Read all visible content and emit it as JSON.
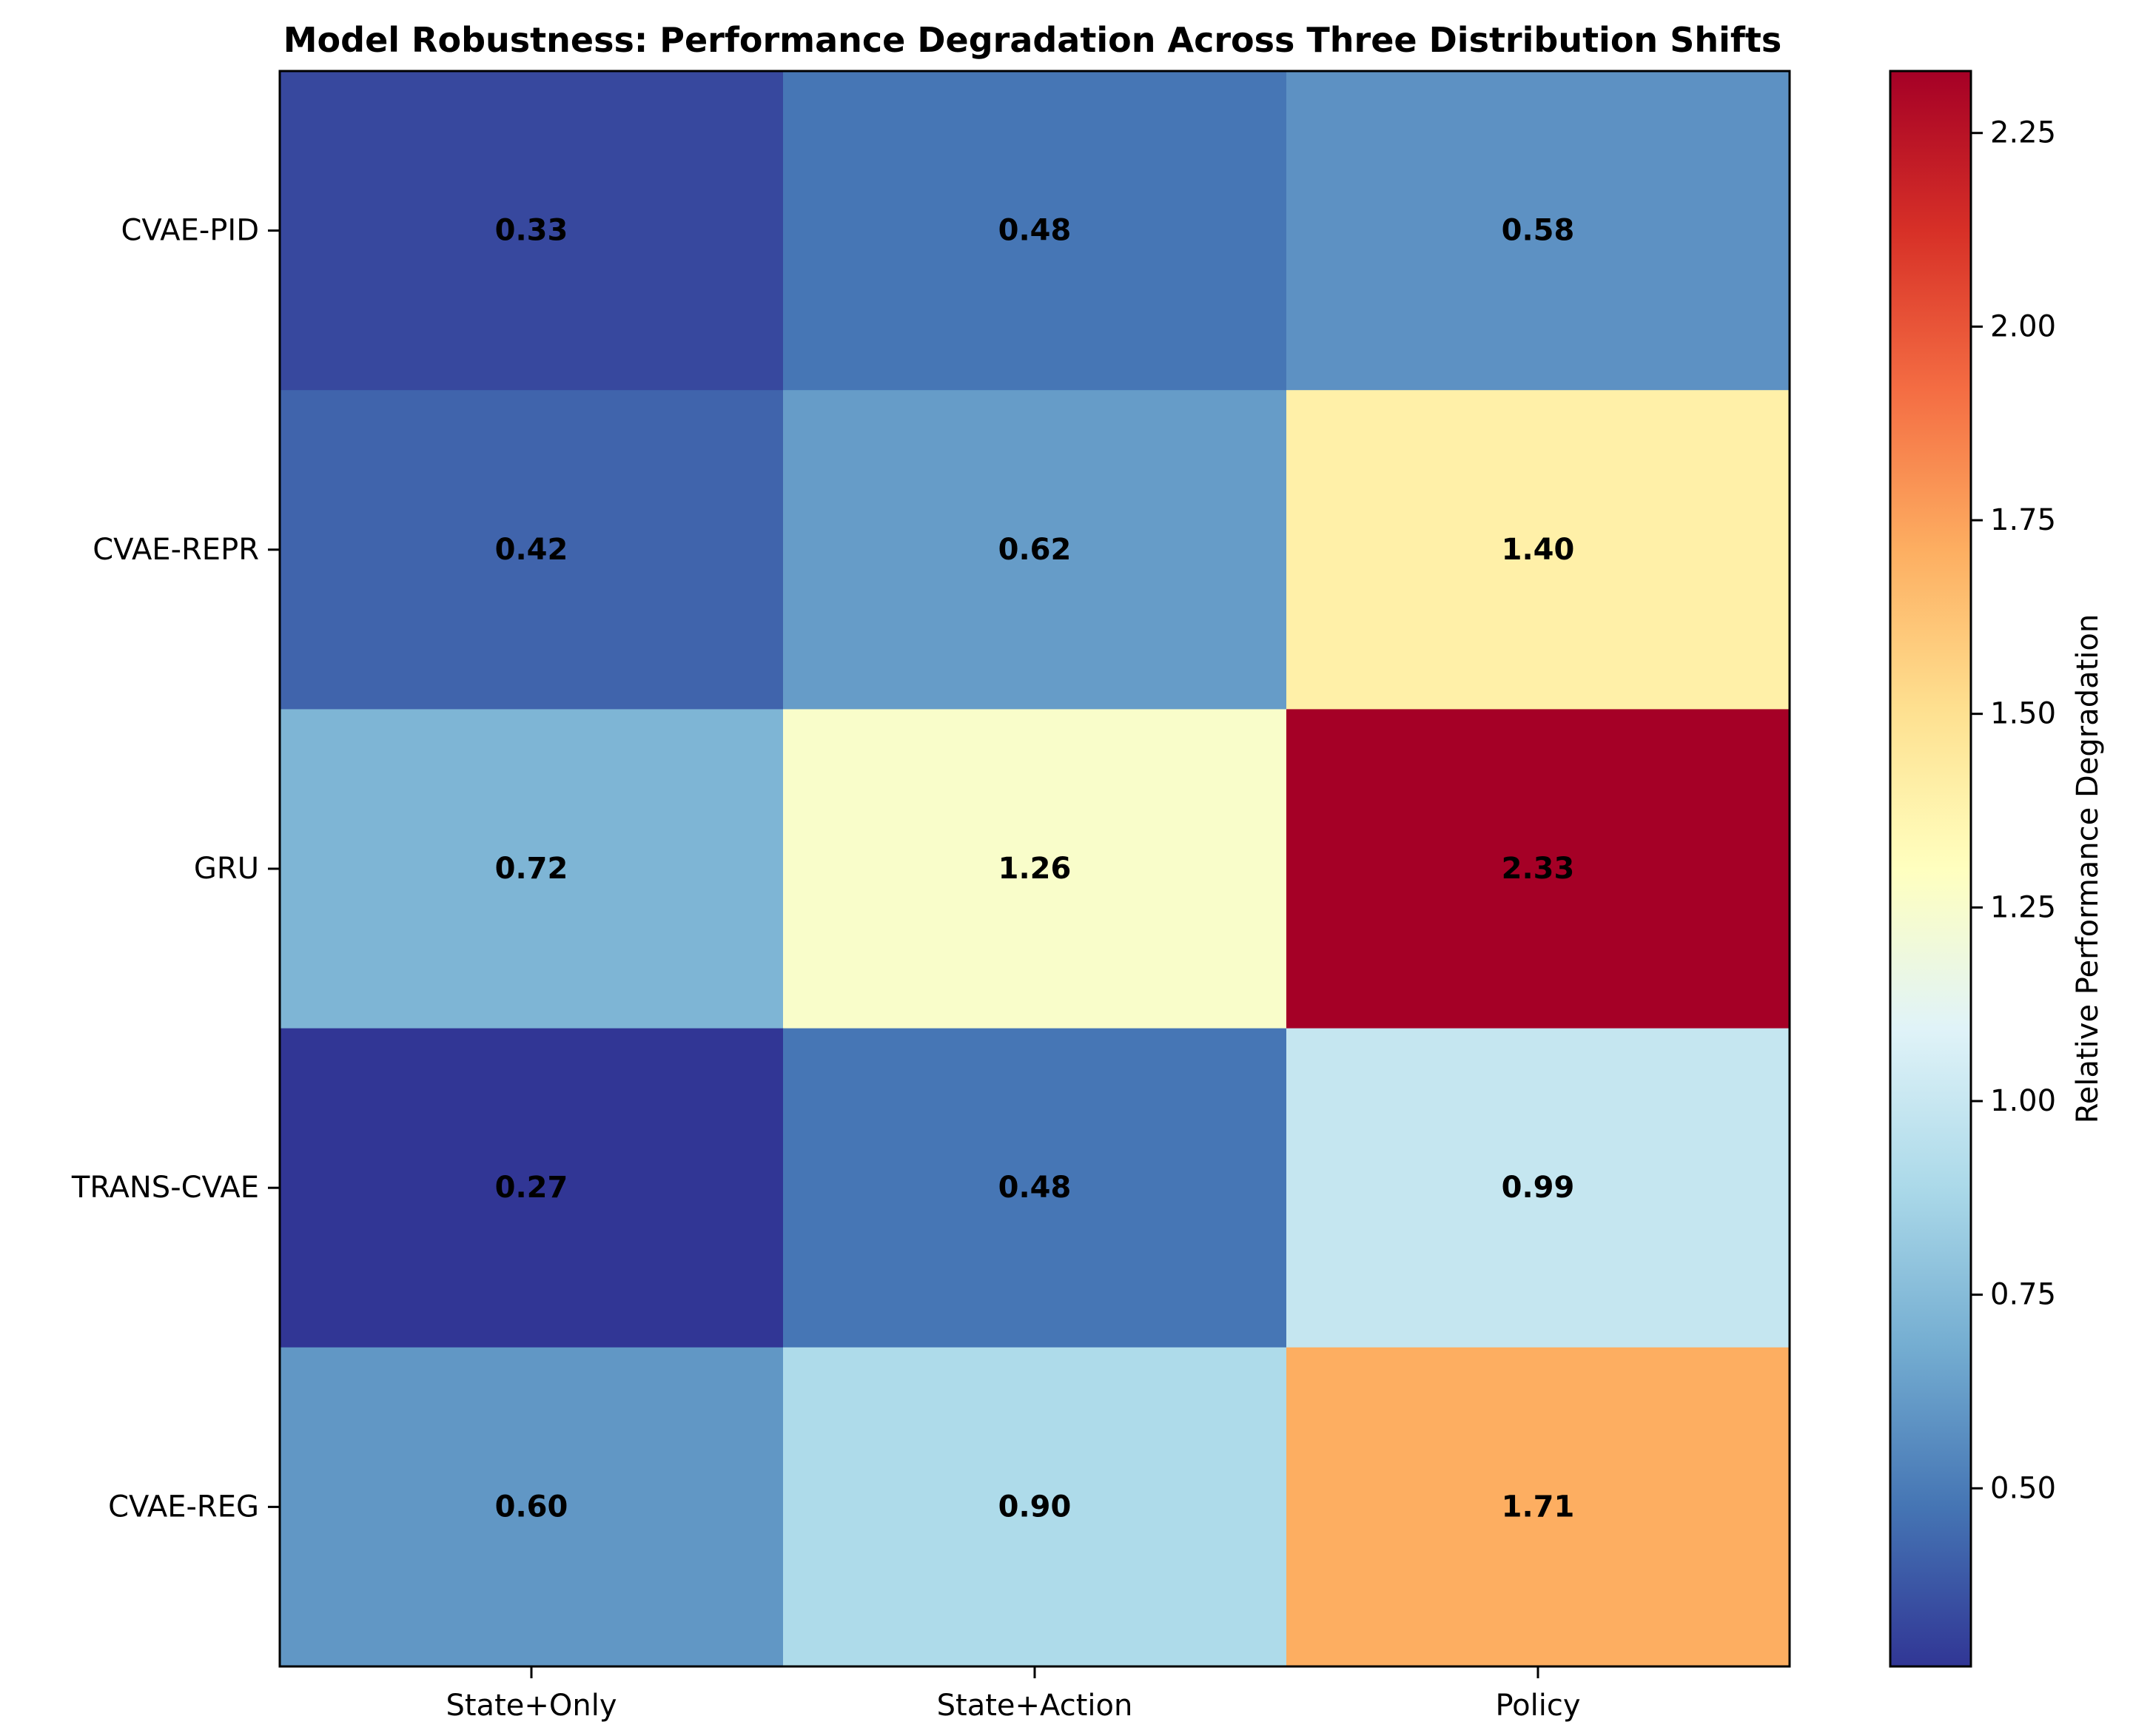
{
  "chart_data": {
    "type": "heatmap",
    "title": "Model Robustness: Performance Degradation Across Three Distribution Shifts",
    "rows": [
      "CVAE-PID",
      "CVAE-REPR",
      "GRU",
      "TRANS-CVAE",
      "CVAE-REG"
    ],
    "columns": [
      "State+Only",
      "State+Action",
      "Policy"
    ],
    "values": [
      [
        0.33,
        0.48,
        0.58
      ],
      [
        0.42,
        0.62,
        1.4
      ],
      [
        0.72,
        1.26,
        2.33
      ],
      [
        0.27,
        0.48,
        0.99
      ],
      [
        0.6,
        0.9,
        1.71
      ]
    ],
    "value_labels": [
      [
        "0.33",
        "0.48",
        "0.58"
      ],
      [
        "0.42",
        "0.62",
        "1.40"
      ],
      [
        "0.72",
        "1.26",
        "2.33"
      ],
      [
        "0.27",
        "0.48",
        "0.99"
      ],
      [
        "0.60",
        "0.90",
        "1.71"
      ]
    ],
    "colormap": "RdYlBu_r",
    "colorbar": {
      "label": "Relative Performance Degradation",
      "range": [
        0.27,
        2.33
      ],
      "ticks": [
        0.5,
        0.75,
        1.0,
        1.25,
        1.5,
        1.75,
        2.0,
        2.25
      ],
      "tick_labels": [
        "0.50",
        "0.75",
        "1.00",
        "1.25",
        "1.50",
        "1.75",
        "2.00",
        "2.25"
      ]
    }
  }
}
